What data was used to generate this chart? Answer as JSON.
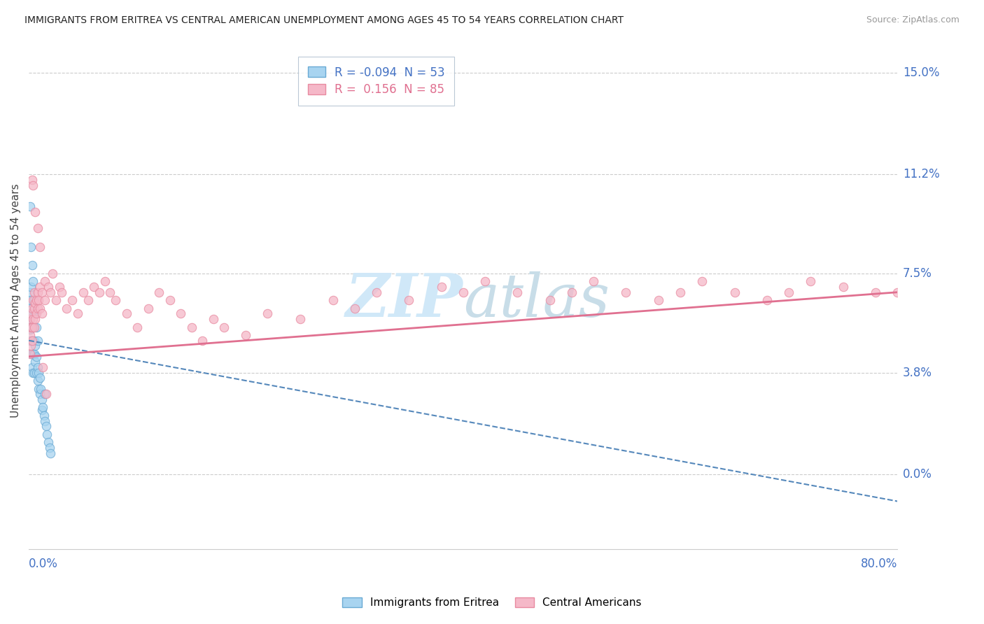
{
  "title": "IMMIGRANTS FROM ERITREA VS CENTRAL AMERICAN UNEMPLOYMENT AMONG AGES 45 TO 54 YEARS CORRELATION CHART",
  "source": "Source: ZipAtlas.com",
  "ylabel": "Unemployment Among Ages 45 to 54 years",
  "ytick_values": [
    0.0,
    0.038,
    0.075,
    0.112,
    0.15
  ],
  "ytick_labels": [
    "0.0%",
    "3.8%",
    "7.5%",
    "11.2%",
    "15.0%"
  ],
  "xlim": [
    0.0,
    0.8
  ],
  "ylim": [
    -0.028,
    0.158
  ],
  "R_eritrea": -0.094,
  "N_eritrea": 53,
  "R_central": 0.156,
  "N_central": 85,
  "color_eritrea_fill": "#A8D4F0",
  "color_eritrea_edge": "#6AAAD4",
  "color_central_fill": "#F5B8C8",
  "color_central_edge": "#E88AA0",
  "color_eritrea_line": "#5588BB",
  "color_central_line": "#E07090",
  "watermark_color": "#D0E8F8",
  "legend_label_eritrea": "Immigrants from Eritrea",
  "legend_label_central": "Central Americans",
  "eritrea_trend_x": [
    0.0,
    0.8
  ],
  "eritrea_trend_y": [
    0.05,
    -0.01
  ],
  "central_trend_x": [
    0.0,
    0.8
  ],
  "central_trend_y": [
    0.044,
    0.068
  ],
  "eritrea_x": [
    0.001,
    0.001,
    0.001,
    0.001,
    0.001,
    0.002,
    0.002,
    0.002,
    0.002,
    0.002,
    0.002,
    0.003,
    0.003,
    0.003,
    0.003,
    0.003,
    0.004,
    0.004,
    0.004,
    0.004,
    0.005,
    0.005,
    0.005,
    0.006,
    0.006,
    0.007,
    0.007,
    0.008,
    0.008,
    0.009,
    0.009,
    0.01,
    0.01,
    0.011,
    0.012,
    0.012,
    0.013,
    0.014,
    0.015,
    0.016,
    0.017,
    0.018,
    0.019,
    0.02,
    0.001,
    0.002,
    0.003,
    0.004,
    0.005,
    0.006,
    0.007,
    0.008,
    0.015
  ],
  "eritrea_y": [
    0.068,
    0.062,
    0.058,
    0.054,
    0.05,
    0.07,
    0.065,
    0.06,
    0.055,
    0.05,
    0.045,
    0.06,
    0.055,
    0.05,
    0.045,
    0.04,
    0.055,
    0.05,
    0.045,
    0.038,
    0.05,
    0.045,
    0.038,
    0.048,
    0.042,
    0.044,
    0.038,
    0.04,
    0.035,
    0.038,
    0.032,
    0.036,
    0.03,
    0.032,
    0.028,
    0.024,
    0.025,
    0.022,
    0.02,
    0.018,
    0.015,
    0.012,
    0.01,
    0.008,
    0.1,
    0.085,
    0.078,
    0.072,
    0.065,
    0.06,
    0.055,
    0.05,
    0.03
  ],
  "central_x": [
    0.001,
    0.001,
    0.001,
    0.002,
    0.002,
    0.002,
    0.003,
    0.003,
    0.003,
    0.004,
    0.004,
    0.005,
    0.005,
    0.005,
    0.006,
    0.006,
    0.007,
    0.007,
    0.008,
    0.008,
    0.009,
    0.01,
    0.01,
    0.012,
    0.012,
    0.015,
    0.015,
    0.018,
    0.02,
    0.022,
    0.025,
    0.028,
    0.03,
    0.035,
    0.04,
    0.045,
    0.05,
    0.055,
    0.06,
    0.065,
    0.07,
    0.075,
    0.08,
    0.09,
    0.1,
    0.11,
    0.12,
    0.13,
    0.14,
    0.15,
    0.16,
    0.17,
    0.18,
    0.2,
    0.22,
    0.25,
    0.28,
    0.3,
    0.32,
    0.35,
    0.38,
    0.4,
    0.42,
    0.45,
    0.48,
    0.5,
    0.52,
    0.55,
    0.58,
    0.6,
    0.62,
    0.65,
    0.68,
    0.7,
    0.72,
    0.75,
    0.78,
    0.8,
    0.003,
    0.004,
    0.006,
    0.008,
    0.01,
    0.013,
    0.016
  ],
  "central_y": [
    0.058,
    0.052,
    0.045,
    0.06,
    0.055,
    0.048,
    0.062,
    0.055,
    0.05,
    0.065,
    0.058,
    0.068,
    0.062,
    0.055,
    0.064,
    0.058,
    0.065,
    0.06,
    0.068,
    0.062,
    0.065,
    0.07,
    0.062,
    0.068,
    0.06,
    0.072,
    0.065,
    0.07,
    0.068,
    0.075,
    0.065,
    0.07,
    0.068,
    0.062,
    0.065,
    0.06,
    0.068,
    0.065,
    0.07,
    0.068,
    0.072,
    0.068,
    0.065,
    0.06,
    0.055,
    0.062,
    0.068,
    0.065,
    0.06,
    0.055,
    0.05,
    0.058,
    0.055,
    0.052,
    0.06,
    0.058,
    0.065,
    0.062,
    0.068,
    0.065,
    0.07,
    0.068,
    0.072,
    0.068,
    0.065,
    0.068,
    0.072,
    0.068,
    0.065,
    0.068,
    0.072,
    0.068,
    0.065,
    0.068,
    0.072,
    0.07,
    0.068,
    0.068,
    0.11,
    0.108,
    0.098,
    0.092,
    0.085,
    0.04,
    0.03
  ]
}
